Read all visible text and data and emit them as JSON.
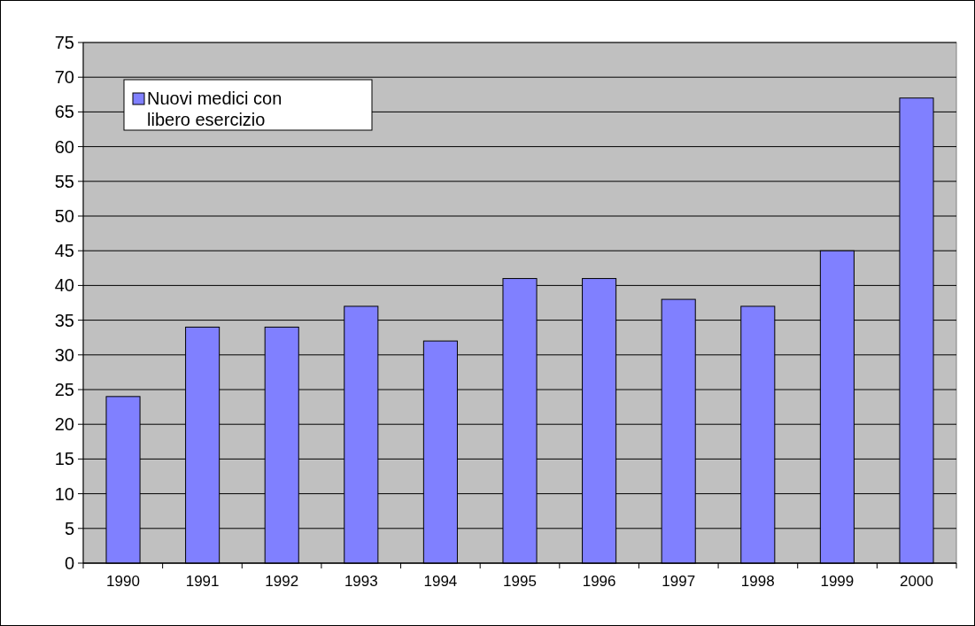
{
  "chart_data": {
    "type": "bar",
    "categories": [
      "1990",
      "1991",
      "1992",
      "1993",
      "1994",
      "1995",
      "1996",
      "1997",
      "1998",
      "1999",
      "2000"
    ],
    "series": [
      {
        "name": "Nuovi medici con libero esercizio",
        "color": "#8080ff",
        "values": [
          24,
          34,
          34,
          37,
          32,
          41,
          41,
          38,
          37,
          45,
          67
        ]
      }
    ],
    "ylim": [
      0,
      75
    ],
    "yticks": [
      0,
      5,
      10,
      15,
      20,
      25,
      30,
      35,
      40,
      45,
      50,
      55,
      60,
      65,
      70,
      75
    ],
    "grid": "y",
    "legend": "top left"
  }
}
